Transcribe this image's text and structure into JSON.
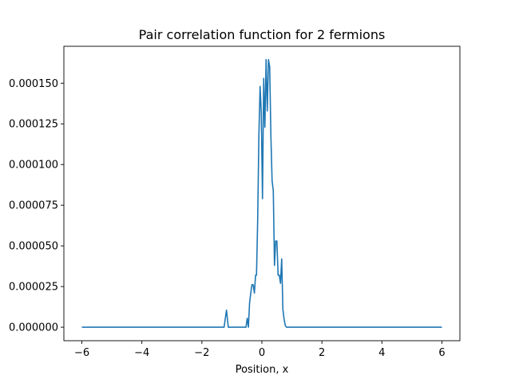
{
  "chart_data": {
    "type": "line",
    "title": "Pair correlation function for 2 fermions",
    "xlabel": "Position, x",
    "ylabel": "",
    "xlim": [
      -6.6,
      6.6
    ],
    "ylim": [
      -8.3e-06,
      0.0001727
    ],
    "xticks": [
      -6,
      -4,
      -2,
      0,
      2,
      4,
      6
    ],
    "xtick_labels": [
      "−6",
      "−4",
      "−2",
      "0",
      "2",
      "4",
      "6"
    ],
    "yticks": [
      0,
      2.5e-05,
      5e-05,
      7.5e-05,
      0.0001,
      0.000125,
      0.00015
    ],
    "ytick_labels": [
      "0.000000",
      "0.000025",
      "0.000050",
      "0.000075",
      "0.000100",
      "0.000125",
      "0.000150"
    ],
    "grid": false,
    "series": [
      {
        "color": "#1f77b4",
        "x": [
          -6.0,
          -1.26,
          -1.18,
          -1.12,
          -1.05,
          -0.53,
          -0.49,
          -0.45,
          -0.41,
          -0.37,
          -0.33,
          -0.29,
          -0.25,
          -0.21,
          -0.18,
          -0.14,
          -0.1,
          -0.06,
          -0.02,
          0.02,
          0.06,
          0.1,
          0.14,
          0.18,
          0.22,
          0.26,
          0.3,
          0.34,
          0.38,
          0.42,
          0.46,
          0.5,
          0.54,
          0.58,
          0.62,
          0.66,
          0.7,
          0.74,
          0.78,
          0.82,
          0.86,
          0.9,
          0.94,
          1.02,
          1.06,
          1.1,
          1.14,
          6.0
        ],
        "y": [
          0,
          0,
          1.05e-05,
          0,
          0,
          0,
          5.5e-06,
          0,
          1.5e-05,
          2.1e-05,
          2.62e-05,
          2.6e-05,
          2.1e-05,
          3.2e-05,
          3.2e-05,
          6.6e-05,
          0.000118,
          0.000148,
          0.000132,
          7.9e-05,
          0.000153,
          0.000123,
          0.0001645,
          0.000133,
          0.0001645,
          0.00016,
          0.000118,
          9e-05,
          8.4e-05,
          3.8e-05,
          5.3e-05,
          5.3e-05,
          3.2e-05,
          3.2e-05,
          2.7e-05,
          4.2e-05,
          1.1e-05,
          5e-06,
          1e-06,
          0,
          0,
          0,
          0,
          0,
          0,
          0,
          0,
          0
        ]
      }
    ]
  }
}
